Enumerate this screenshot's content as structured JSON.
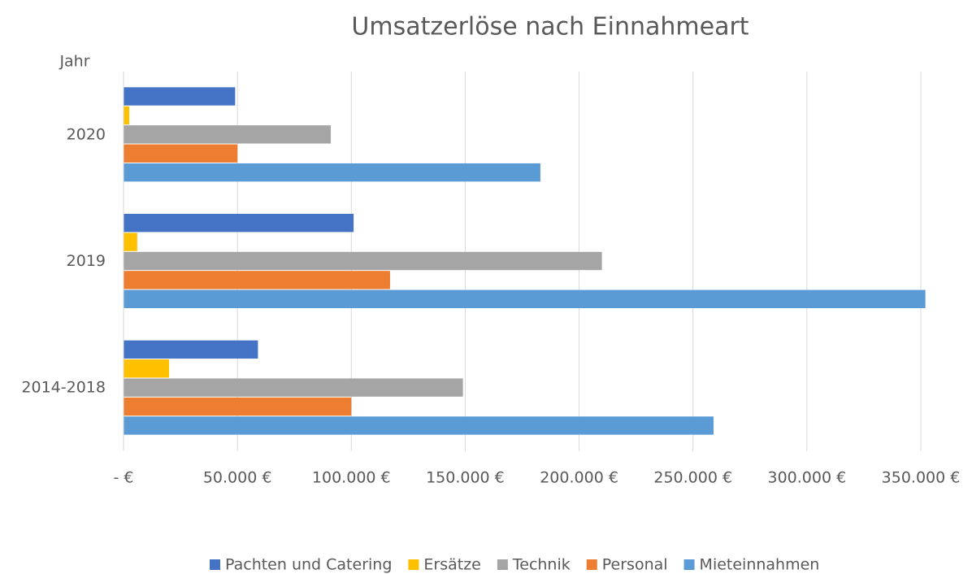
{
  "chart_data": {
    "type": "hbar",
    "title": "Umsatzerlöse nach Einnahmeart",
    "y_label": "Jahr",
    "categories": [
      "2020",
      "2019",
      "2014-2018"
    ],
    "series": [
      {
        "name": "Pachten und Catering",
        "color": "#4472c4",
        "values": [
          49000,
          101000,
          59000
        ]
      },
      {
        "name": "Ersätze",
        "color": "#ffc000",
        "values": [
          2500,
          6000,
          20000
        ]
      },
      {
        "name": "Technik",
        "color": "#a5a5a5",
        "values": [
          91000,
          210000,
          149000
        ]
      },
      {
        "name": "Personal",
        "color": "#ed7d31",
        "values": [
          50000,
          117000,
          100000
        ]
      },
      {
        "name": "Mieteinnahmen",
        "color": "#5b9bd5",
        "values": [
          183000,
          352000,
          259000
        ]
      }
    ],
    "xlim": [
      0,
      350000
    ],
    "xticks": [
      {
        "value": 0,
        "label": "- €"
      },
      {
        "value": 50000,
        "label": "50.000 €"
      },
      {
        "value": 100000,
        "label": "100.000 €"
      },
      {
        "value": 150000,
        "label": "150.000 €"
      },
      {
        "value": 200000,
        "label": "200.000 €"
      },
      {
        "value": 250000,
        "label": "250.000 €"
      },
      {
        "value": 300000,
        "label": "300.000 €"
      },
      {
        "value": 350000,
        "label": "350.000 €"
      }
    ],
    "grid": true,
    "legend": "bottom"
  }
}
